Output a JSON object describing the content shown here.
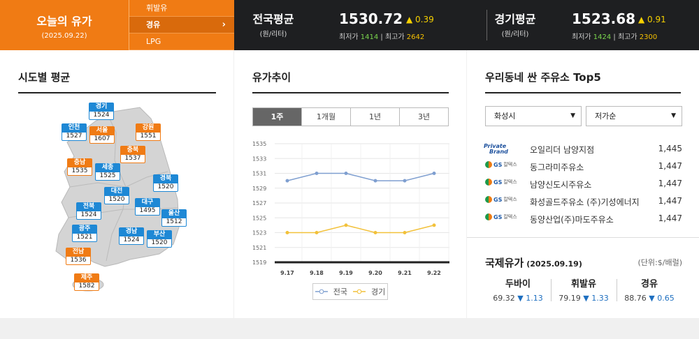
{
  "today": {
    "title": "오늘의 유가",
    "date": "(2025.09.22)"
  },
  "fuel_menu": [
    "휘발유",
    "경유",
    "LPG"
  ],
  "fuel_active": "경유",
  "national": {
    "label": "전국평균",
    "unit": "(원/리터)",
    "price": "1530.72",
    "change": "▲ 0.39",
    "min_label": "최저가",
    "min": "1414",
    "max_label": "최고가",
    "max": "2642"
  },
  "gyeonggi": {
    "label": "경기평균",
    "unit": "(원/리터)",
    "price": "1523.68",
    "change": "▲ 0.91",
    "min_label": "최저가",
    "min": "1424",
    "max_label": "최고가",
    "max": "2300"
  },
  "regional": {
    "title": "시도별 평균",
    "regions": [
      {
        "name": "경기",
        "value": "1524",
        "color": "blue"
      },
      {
        "name": "인천",
        "value": "1527",
        "color": "blue"
      },
      {
        "name": "서울",
        "value": "1607",
        "color": "orange"
      },
      {
        "name": "강원",
        "value": "1551",
        "color": "orange"
      },
      {
        "name": "충북",
        "value": "1537",
        "color": "orange"
      },
      {
        "name": "충남",
        "value": "1535",
        "color": "orange"
      },
      {
        "name": "세종",
        "value": "1525",
        "color": "blue"
      },
      {
        "name": "경북",
        "value": "1520",
        "color": "blue"
      },
      {
        "name": "대전",
        "value": "1520",
        "color": "blue"
      },
      {
        "name": "전북",
        "value": "1524",
        "color": "blue"
      },
      {
        "name": "대구",
        "value": "1495",
        "color": "blue"
      },
      {
        "name": "울산",
        "value": "1512",
        "color": "blue"
      },
      {
        "name": "광주",
        "value": "1521",
        "color": "blue"
      },
      {
        "name": "경남",
        "value": "1524",
        "color": "blue"
      },
      {
        "name": "부산",
        "value": "1520",
        "color": "blue"
      },
      {
        "name": "전남",
        "value": "1536",
        "color": "orange"
      },
      {
        "name": "제주",
        "value": "1582",
        "color": "orange"
      }
    ]
  },
  "trend": {
    "title": "유가추이",
    "tabs": [
      "1주",
      "1개월",
      "1년",
      "3년"
    ],
    "active_tab": "1주"
  },
  "chart_data": {
    "type": "line",
    "x": [
      "9.17",
      "9.18",
      "9.19",
      "9.20",
      "9.21",
      "9.22"
    ],
    "series": [
      {
        "name": "전국",
        "values": [
          1530,
          1531,
          1531,
          1530,
          1530,
          1531
        ],
        "color": "#7f9fd0"
      },
      {
        "name": "경기",
        "values": [
          1523,
          1523,
          1524,
          1523,
          1523,
          1524
        ],
        "color": "#f2c13a"
      }
    ],
    "yticks": [
      1519,
      1521,
      1523,
      1525,
      1527,
      1529,
      1531,
      1533,
      1535
    ],
    "ylim": [
      1519,
      1535
    ],
    "grid": true,
    "legend": "bottom"
  },
  "top5": {
    "title": "우리동네 싼 주유소 Top5",
    "region_select": "화성시",
    "sort_select": "저가순",
    "stations": [
      {
        "brand": "private-brand",
        "brand_text": [
          "Private",
          "Brand"
        ],
        "name": "오일리더 남양지점",
        "price": "1,445"
      },
      {
        "brand": "gs",
        "brand_text": [
          "GS",
          "칼텍스"
        ],
        "name": "동그라미주유소",
        "price": "1,447"
      },
      {
        "brand": "gs",
        "brand_text": [
          "GS",
          "칼텍스"
        ],
        "name": "남양신도시주유소",
        "price": "1,447"
      },
      {
        "brand": "gs",
        "brand_text": [
          "GS",
          "칼텍스"
        ],
        "name": "화성골드주유소 (주)기성에너지",
        "price": "1,447"
      },
      {
        "brand": "gs",
        "brand_text": [
          "GS",
          "칼텍스"
        ],
        "name": "동양산업(주)마도주유소",
        "price": "1,447"
      }
    ]
  },
  "intl": {
    "title": "국제유가",
    "date": "(2025.09.19)",
    "unit": "(단위:$/배럴)",
    "items": [
      {
        "name": "두바이",
        "value": "69.32",
        "change": "▼ 1.13"
      },
      {
        "name": "휘발유",
        "value": "79.19",
        "change": "▼ 1.33"
      },
      {
        "name": "경유",
        "value": "88.76",
        "change": "▼ 0.65"
      }
    ]
  }
}
